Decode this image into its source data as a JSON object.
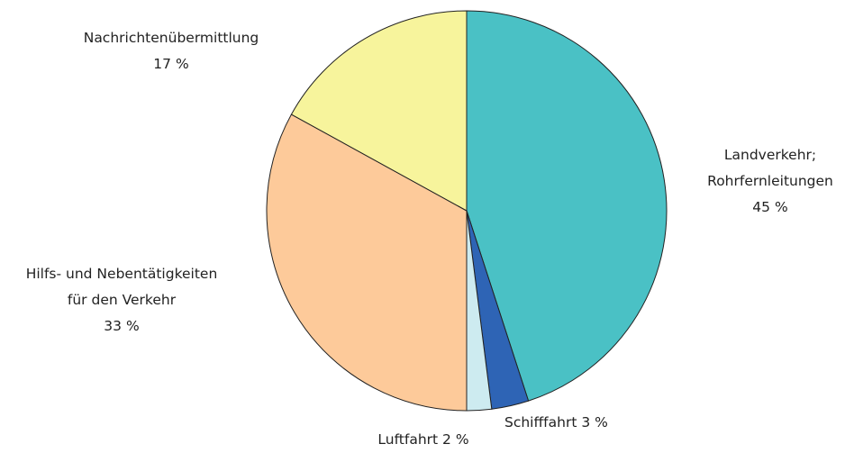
{
  "chart_data": {
    "type": "pie",
    "categories": [
      "Landverkehr; Rohrfernleitungen",
      "Schifffahrt",
      "Luftfahrt",
      "Hilfs- und Nebentätigkeiten für den Verkehr",
      "Nachrichtenübermittlung"
    ],
    "values": [
      45,
      3,
      2,
      33,
      17
    ],
    "value_labels": [
      "45 %",
      "3 %",
      "2 %",
      "33 %",
      "17 %"
    ],
    "colors": [
      "#4ac1c5",
      "#2e64b5",
      "#cdebf0",
      "#fdca9a",
      "#f7f49c"
    ]
  }
}
